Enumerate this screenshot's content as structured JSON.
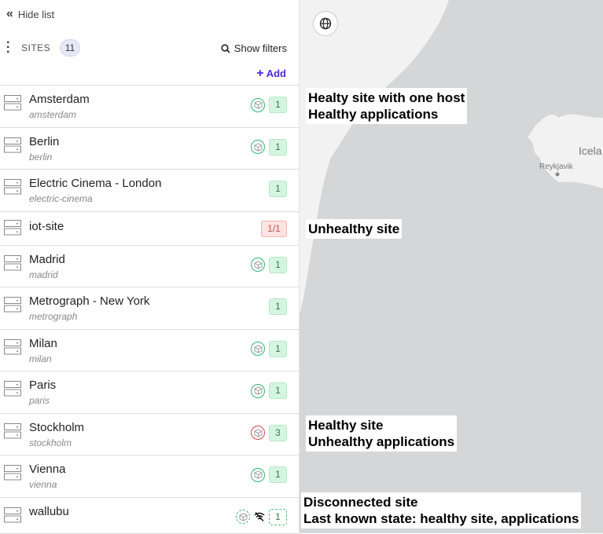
{
  "sidebar": {
    "hide_label": "Hide list",
    "sites_label": "SITES",
    "count": "11",
    "show_filters": "Show filters",
    "add_label": "Add",
    "sites": [
      {
        "name": "Amsterdam",
        "slug": "amsterdam",
        "app_status": "healthy",
        "hosts": "1",
        "host_status": "healthy"
      },
      {
        "name": "Berlin",
        "slug": "berlin",
        "app_status": "healthy",
        "hosts": "1",
        "host_status": "healthy"
      },
      {
        "name": "Electric Cinema - London",
        "slug": "electric-cinema",
        "app_status": null,
        "hosts": "1",
        "host_status": "healthy"
      },
      {
        "name": "iot-site",
        "slug": "",
        "app_status": null,
        "hosts": "1/1",
        "host_status": "unhealthy"
      },
      {
        "name": "Madrid",
        "slug": "madrid",
        "app_status": "healthy",
        "hosts": "1",
        "host_status": "healthy"
      },
      {
        "name": "Metrograph - New York",
        "slug": "metrograph",
        "app_status": null,
        "hosts": "1",
        "host_status": "healthy"
      },
      {
        "name": "Milan",
        "slug": "milan",
        "app_status": "healthy",
        "hosts": "1",
        "host_status": "healthy"
      },
      {
        "name": "Paris",
        "slug": "paris",
        "app_status": "healthy",
        "hosts": "1",
        "host_status": "healthy"
      },
      {
        "name": "Stockholm",
        "slug": "stockholm",
        "app_status": "unhealthy",
        "hosts": "3",
        "host_status": "healthy"
      },
      {
        "name": "Vienna",
        "slug": "vienna",
        "app_status": "healthy",
        "hosts": "1",
        "host_status": "healthy"
      },
      {
        "name": "wallubu",
        "slug": "",
        "app_status": "disconnected",
        "hosts": "1",
        "host_status": "disconnected"
      }
    ]
  },
  "map": {
    "labels": {
      "city": "Reykjavik",
      "country": "Icela"
    },
    "notes": [
      {
        "line1": "Healty site with one host",
        "line2": "Healthy applications"
      },
      {
        "line1": "Unhealthy site",
        "line2": ""
      },
      {
        "line1": "Healthy site",
        "line2": "Unhealthy applications"
      },
      {
        "line1": "Disconnected site",
        "line2": "Last known state: healthy site, applications"
      }
    ]
  },
  "colors": {
    "accent": "#4a2be0",
    "healthy": "#2eb673",
    "unhealthy": "#e0454a",
    "map_water": "#d4d6d7",
    "map_land": "#f2f2f2"
  }
}
